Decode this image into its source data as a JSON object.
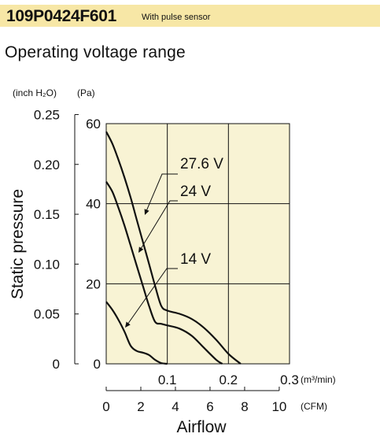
{
  "header": {
    "model": "109P0424F601",
    "subtitle": "With pulse sensor"
  },
  "section_title": "Operating voltage range",
  "chart_data": {
    "type": "line",
    "title": "",
    "xlabel": "Airflow",
    "ylabel": "Static pressure",
    "x_unit_primary": "(m³/min)",
    "x_unit_secondary": "(CFM)",
    "y_unit_left": "(inch H₂O)",
    "y_unit_right": "(Pa)",
    "xlim": [
      0,
      0.3
    ],
    "ylim": [
      0,
      60
    ],
    "grid": true,
    "x_ticks_primary": [
      "0.1",
      "0.2",
      "0.3"
    ],
    "x_ticks_primary_values": [
      0.1,
      0.2,
      0.3
    ],
    "x_ticks_secondary": [
      "0",
      "2",
      "4",
      "6",
      "8",
      "10"
    ],
    "x_ticks_secondary_values": [
      0,
      2,
      4,
      6,
      8,
      10
    ],
    "y_ticks_pa": [
      "0",
      "20",
      "40",
      "60"
    ],
    "y_ticks_pa_values": [
      0,
      20,
      40,
      60
    ],
    "y_ticks_inch": [
      "0",
      "0.05",
      "0.10",
      "0.15",
      "0.20",
      "0.25"
    ],
    "y_ticks_inch_values": [
      0,
      0.05,
      0.1,
      0.15,
      0.2,
      0.25
    ],
    "series": [
      {
        "name": "27.6 V",
        "x": [
          0,
          0.01,
          0.02,
          0.03,
          0.04,
          0.05,
          0.06,
          0.07,
          0.08,
          0.09,
          0.1,
          0.12,
          0.14,
          0.16,
          0.18,
          0.2,
          0.22
        ],
        "y": [
          58,
          55,
          51,
          46.5,
          41.5,
          36,
          30.5,
          25,
          19.5,
          14.5,
          13.3,
          12.5,
          11.2,
          9,
          6,
          2.5,
          0
        ]
      },
      {
        "name": "24 V",
        "x": [
          0,
          0.01,
          0.02,
          0.03,
          0.04,
          0.05,
          0.06,
          0.07,
          0.08,
          0.09,
          0.1,
          0.12,
          0.14,
          0.16,
          0.18,
          0.19
        ],
        "y": [
          45.5,
          43,
          39,
          34.5,
          29.5,
          24.5,
          19.5,
          14.5,
          10.5,
          10,
          9.6,
          8.8,
          7,
          4,
          1,
          0
        ]
      },
      {
        "name": "14 V",
        "x": [
          0,
          0.01,
          0.02,
          0.03,
          0.04,
          0.05,
          0.06,
          0.07,
          0.08,
          0.09,
          0.1
        ],
        "y": [
          15.5,
          13.5,
          11,
          8,
          4.5,
          3.2,
          2.8,
          2.2,
          1,
          0.2,
          0
        ]
      }
    ],
    "annotations": [
      {
        "text": "27.6 V",
        "series": "27.6 V"
      },
      {
        "text": "24 V",
        "series": "24 V"
      },
      {
        "text": "14 V",
        "series": "14 V"
      }
    ]
  }
}
